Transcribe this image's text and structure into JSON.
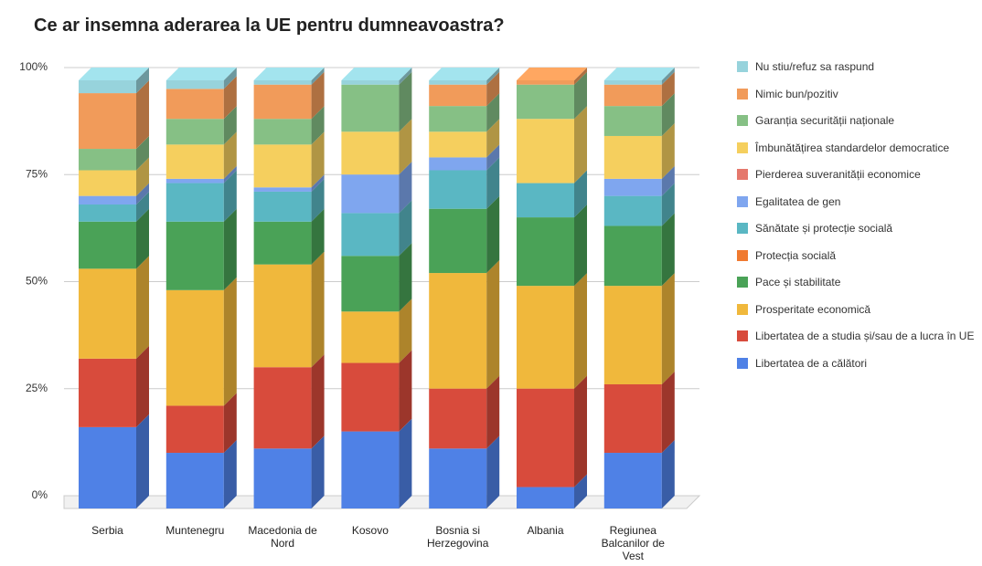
{
  "chart_data": {
    "type": "stacked-bar-3d",
    "title": "Ce ar insemna aderarea la UE pentru dumneavoastra?",
    "categories": [
      "Serbia",
      "Muntenegru",
      "Macedonia de Nord",
      "Kosovo",
      "Bosnia si Herzegovina",
      "Albania",
      "Regiunea Balcanilor de Vest"
    ],
    "series": [
      {
        "name": "Libertatea de a călători",
        "color": "#4f81e6",
        "values": [
          19,
          13,
          14,
          18,
          14,
          5,
          13
        ]
      },
      {
        "name": "Libertatea de a studia și/sau de a lucra în UE",
        "color": "#d84b3c",
        "values": [
          16,
          11,
          19,
          16,
          14,
          23,
          16
        ]
      },
      {
        "name": "Prosperitate economică",
        "color": "#f0b83c",
        "values": [
          21,
          27,
          24,
          12,
          27,
          24,
          23
        ]
      },
      {
        "name": "Pace și stabilitate",
        "color": "#4aa257",
        "values": [
          11,
          16,
          10,
          13,
          15,
          16,
          14
        ]
      },
      {
        "name": "Protecția socială",
        "color": "#f07a30",
        "values": [
          0,
          0,
          0,
          0,
          0,
          0,
          0
        ]
      },
      {
        "name": "Sănătate și protecție socială",
        "color": "#5ab7c3",
        "values": [
          4,
          9,
          7,
          10,
          9,
          8,
          7
        ]
      },
      {
        "name": "Egalitatea de gen",
        "color": "#7fa6ef",
        "values": [
          2,
          1,
          1,
          9,
          3,
          0,
          4
        ]
      },
      {
        "name": "Pierderea suveranității economice",
        "color": "#e5786c",
        "values": [
          0,
          0,
          0,
          0,
          0,
          0,
          0
        ]
      },
      {
        "name": "Îmbunătățirea standardelor democratice",
        "color": "#f5cf5e",
        "values": [
          6,
          8,
          10,
          10,
          6,
          15,
          10
        ]
      },
      {
        "name": "Garanția securității naționale",
        "color": "#86c085",
        "values": [
          5,
          6,
          6,
          11,
          6,
          8,
          7
        ]
      },
      {
        "name": "Nimic bun/pozitiv",
        "color": "#f19b5a",
        "values": [
          13,
          7,
          8,
          0,
          5,
          1,
          5
        ]
      },
      {
        "name": "Nu stiu/refuz sa raspund",
        "color": "#97d3dc",
        "values": [
          3,
          2,
          1,
          1,
          1,
          0,
          1
        ]
      }
    ],
    "ylim": [
      0,
      100
    ],
    "yticks": [
      {
        "value": 0,
        "label": "0%"
      },
      {
        "value": 25,
        "label": "25%"
      },
      {
        "value": 50,
        "label": "50%"
      },
      {
        "value": 75,
        "label": "75%"
      },
      {
        "value": 100,
        "label": "100%"
      }
    ],
    "grid": true
  }
}
